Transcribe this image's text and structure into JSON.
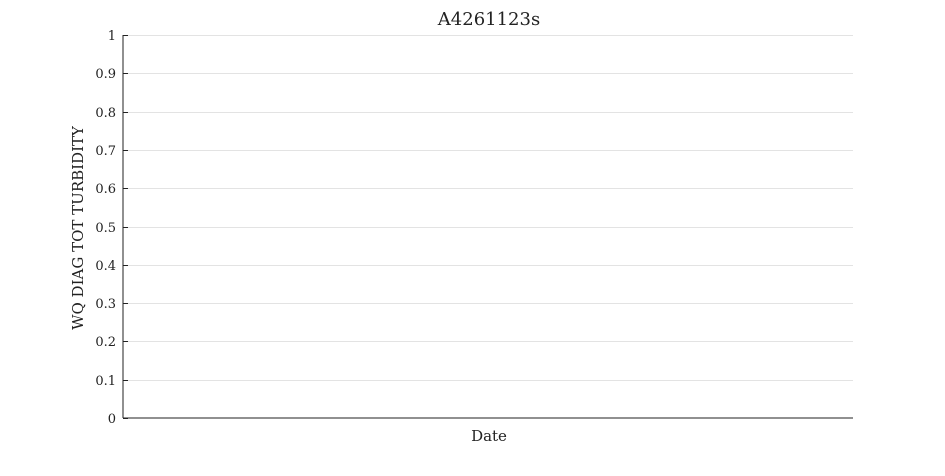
{
  "chart_data": {
    "type": "line",
    "title": "A4261123s",
    "xlabel": "Date",
    "ylabel": "WQ DIAG TOT TURBIDITY",
    "ylim": [
      0,
      1
    ],
    "yticks": [
      0,
      0.1,
      0.2,
      0.3,
      0.4,
      0.5,
      0.6,
      0.7,
      0.8,
      0.9,
      1
    ],
    "ytick_labels": [
      "0",
      "0.1",
      "0.2",
      "0.3",
      "0.4",
      "0.5",
      "0.6",
      "0.7",
      "0.8",
      "0.9",
      "1"
    ],
    "x": [],
    "series": [],
    "grid": "horizontal",
    "legend": "none",
    "colors": {
      "axis": "#222222",
      "grid": "#e3e3e3"
    }
  }
}
